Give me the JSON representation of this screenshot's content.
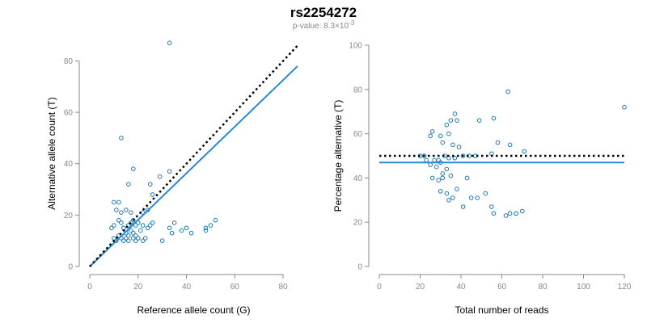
{
  "figure": {
    "title": "rs2254272",
    "subtitle_prefix": "p-value: 8.3×10",
    "subtitle_exponent": "-3"
  },
  "colors": {
    "point": "#1f78b4",
    "fit": "#2a88d8",
    "reference": "#000000",
    "axis": "#888888"
  },
  "chart_data": [
    {
      "type": "scatter",
      "title": "",
      "xlabel": "Reference allele count (G)",
      "ylabel": "Alternative allele count (T)",
      "xlim": [
        0,
        86
      ],
      "ylim": [
        0,
        88
      ],
      "xticks": [
        0,
        20,
        40,
        60,
        80
      ],
      "yticks": [
        0,
        20,
        40,
        60,
        80
      ],
      "reference_line": {
        "name": "expected 50%",
        "style": "dotted",
        "x": [
          0,
          86
        ],
        "y": [
          0,
          86
        ]
      },
      "fit_line": {
        "name": "fitted",
        "style": "solid",
        "x": [
          0,
          86
        ],
        "y": [
          0,
          78
        ]
      },
      "points": [
        [
          33,
          87
        ],
        [
          13,
          50
        ],
        [
          18,
          38
        ],
        [
          29,
          35
        ],
        [
          33,
          37
        ],
        [
          25,
          32
        ],
        [
          26,
          28
        ],
        [
          16,
          32
        ],
        [
          10,
          25
        ],
        [
          12,
          25
        ],
        [
          11,
          22
        ],
        [
          13,
          21
        ],
        [
          15,
          22
        ],
        [
          17,
          21
        ],
        [
          22,
          21
        ],
        [
          24,
          22
        ],
        [
          9,
          15
        ],
        [
          10,
          16
        ],
        [
          12,
          18
        ],
        [
          13,
          17
        ],
        [
          14,
          15
        ],
        [
          16,
          16
        ],
        [
          17,
          17
        ],
        [
          18,
          18
        ],
        [
          19,
          16
        ],
        [
          20,
          17
        ],
        [
          22,
          16
        ],
        [
          24,
          15
        ],
        [
          25,
          16
        ],
        [
          26,
          17
        ],
        [
          15,
          13
        ],
        [
          16,
          12
        ],
        [
          17,
          14
        ],
        [
          18,
          13
        ],
        [
          19,
          12
        ],
        [
          20,
          11
        ],
        [
          21,
          14
        ],
        [
          10,
          11
        ],
        [
          11,
          10
        ],
        [
          12,
          12
        ],
        [
          13,
          11
        ],
        [
          14,
          10
        ],
        [
          15,
          11
        ],
        [
          16,
          10
        ],
        [
          18,
          11
        ],
        [
          19,
          10
        ],
        [
          22,
          10
        ],
        [
          23,
          11
        ],
        [
          30,
          10
        ],
        [
          33,
          15
        ],
        [
          35,
          17
        ],
        [
          34,
          13
        ],
        [
          38,
          14
        ],
        [
          40,
          15
        ],
        [
          42,
          13
        ],
        [
          48,
          14
        ],
        [
          48,
          15
        ],
        [
          50,
          16
        ],
        [
          52,
          18
        ]
      ]
    },
    {
      "type": "scatter",
      "title": "",
      "xlabel": "Total number of reads",
      "ylabel": "Percentage alternative (T)",
      "xlim": [
        0,
        120
      ],
      "ylim": [
        0,
        100
      ],
      "xticks": [
        0,
        20,
        40,
        60,
        80,
        100,
        120
      ],
      "yticks": [
        0,
        20,
        40,
        60,
        80,
        100
      ],
      "reference_line": {
        "name": "expected 50%",
        "style": "dotted",
        "x": [
          0,
          120
        ],
        "y": [
          50,
          50
        ]
      },
      "fit_line": {
        "name": "fitted",
        "style": "solid",
        "x": [
          0,
          120
        ],
        "y": [
          47,
          47
        ]
      },
      "points": [
        [
          63,
          79
        ],
        [
          120,
          72
        ],
        [
          37,
          69
        ],
        [
          38,
          66
        ],
        [
          33,
          64
        ],
        [
          35,
          66
        ],
        [
          49,
          66
        ],
        [
          56,
          67
        ],
        [
          26,
          61
        ],
        [
          25,
          59
        ],
        [
          30,
          59
        ],
        [
          34,
          60
        ],
        [
          31,
          56
        ],
        [
          36,
          55
        ],
        [
          39,
          54
        ],
        [
          58,
          56
        ],
        [
          64,
          55
        ],
        [
          22,
          50
        ],
        [
          20,
          50
        ],
        [
          23,
          48
        ],
        [
          27,
          48
        ],
        [
          29,
          48
        ],
        [
          32,
          50
        ],
        [
          34,
          49
        ],
        [
          37,
          49
        ],
        [
          41,
          50
        ],
        [
          44,
          50
        ],
        [
          47,
          50
        ],
        [
          55,
          51
        ],
        [
          71,
          52
        ],
        [
          25,
          46
        ],
        [
          28,
          45
        ],
        [
          30,
          47
        ],
        [
          33,
          44
        ],
        [
          31,
          42
        ],
        [
          35,
          41
        ],
        [
          26,
          40
        ],
        [
          29,
          39
        ],
        [
          31,
          40
        ],
        [
          43,
          40
        ],
        [
          36,
          31
        ],
        [
          38,
          35
        ],
        [
          45,
          31
        ],
        [
          30,
          34
        ],
        [
          33,
          33
        ],
        [
          34,
          30
        ],
        [
          48,
          31
        ],
        [
          52,
          33
        ],
        [
          41,
          27
        ],
        [
          55,
          27
        ],
        [
          56,
          24
        ],
        [
          62,
          23
        ],
        [
          64,
          24
        ],
        [
          67,
          24
        ],
        [
          70,
          25
        ]
      ]
    }
  ]
}
